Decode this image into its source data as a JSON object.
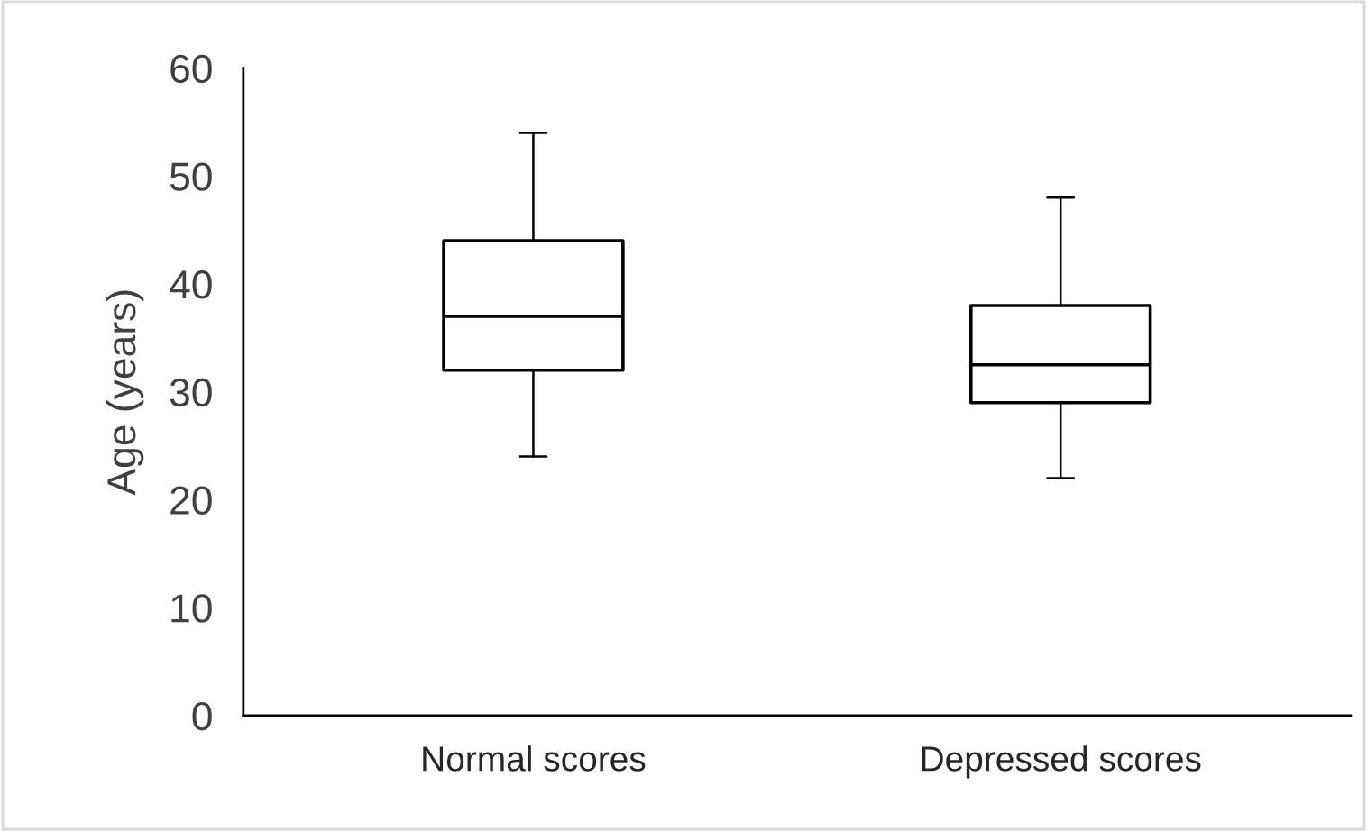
{
  "chart_data": {
    "type": "box",
    "ylabel": "Age (years)",
    "categories": [
      "Normal scores",
      "Depressed scores"
    ],
    "boxes": [
      {
        "low": 24,
        "q1": 32,
        "median": 37,
        "q3": 44,
        "high": 54
      },
      {
        "low": 22,
        "q1": 29,
        "median": 32.5,
        "q3": 38,
        "high": 48
      }
    ],
    "ylim": [
      0,
      60
    ],
    "yticks": [
      0,
      10,
      20,
      30,
      40,
      50,
      60
    ],
    "grid": false,
    "legend": false
  }
}
